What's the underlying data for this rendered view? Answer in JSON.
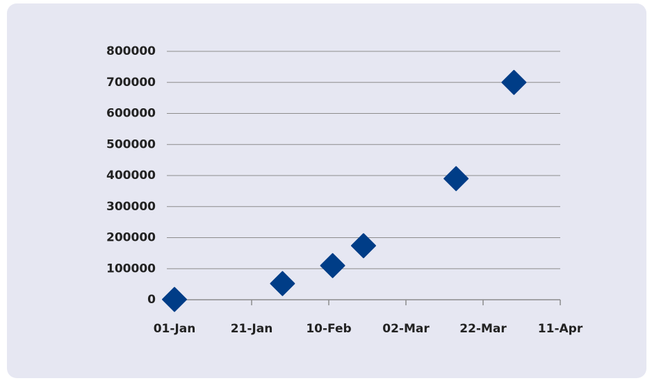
{
  "chart_data": {
    "type": "scatter",
    "x": [
      "01-Jan",
      "29-Jan",
      "11-Feb",
      "19-Feb",
      "15-Mar",
      "30-Mar"
    ],
    "series": [
      {
        "color": "#003d87",
        "values": [
          1000,
          52000,
          110000,
          174000,
          390000,
          700000
        ]
      }
    ],
    "xlim": [
      "01-Jan",
      "11-Apr"
    ],
    "xticks": [
      "01-Jan",
      "21-Jan",
      "10-Feb",
      "02-Mar",
      "22-Mar",
      "11-Apr"
    ],
    "ylim": [
      0,
      800000
    ],
    "yticks": [
      0,
      100000,
      200000,
      300000,
      400000,
      500000,
      600000,
      700000,
      800000
    ],
    "grid": true
  }
}
